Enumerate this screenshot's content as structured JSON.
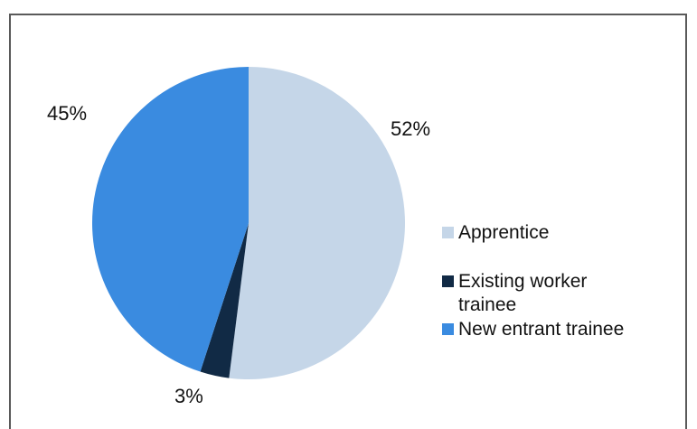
{
  "chart_data": {
    "type": "pie",
    "title": "",
    "slices": [
      {
        "label": "Apprentice",
        "value": 52,
        "display": "52%",
        "color": "#c5d6e8"
      },
      {
        "label": "Existing worker trainee",
        "value": 3,
        "display": "3%",
        "color": "#112a45"
      },
      {
        "label": "New entrant trainee",
        "value": 45,
        "display": "45%",
        "color": "#3a8be0"
      }
    ],
    "legend": {
      "placement": "right",
      "items": [
        {
          "line1": "Apprentice",
          "line2": ""
        },
        {
          "line1": "Existing worker",
          "line2": "trainee"
        },
        {
          "line1": "New entrant trainee",
          "line2": ""
        }
      ]
    }
  }
}
